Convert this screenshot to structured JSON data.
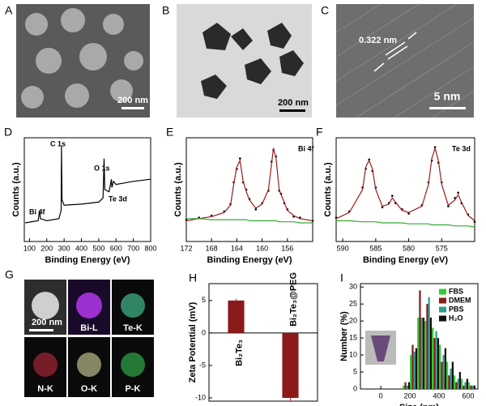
{
  "figure": {
    "images": [
      {
        "label": "A",
        "texts": [
          "200 nm"
        ]
      },
      {
        "label": "B",
        "texts": [
          "200 nm"
        ]
      },
      {
        "label": "C",
        "texts": [
          "0.322 nm",
          "5 nm"
        ]
      },
      {
        "label": "G",
        "texts": [
          "200 nm",
          "Bi-L",
          "Te-K",
          "N-K",
          "O-K",
          "P-K"
        ]
      }
    ]
  },
  "chart_data": [
    {
      "type": "line",
      "label": "D",
      "xlabel": "Binding Energy (eV)",
      "ylabel": "Counts (a.u.)",
      "annotations": [
        "Bi 4f",
        "C 1s",
        "O 1s",
        "Te 3d"
      ],
      "xlim": [
        70,
        800
      ],
      "xticks": [
        100,
        200,
        300,
        400,
        500,
        600,
        700,
        800
      ],
      "ylim": [
        0,
        100
      ],
      "x": [
        75,
        150,
        158,
        163,
        200,
        270,
        283,
        285,
        288,
        300,
        400,
        500,
        525,
        531,
        535,
        560,
        573,
        576,
        585,
        600,
        700,
        800
      ],
      "series": [
        {
          "color": "#000000",
          "values": [
            18,
            20,
            30,
            22,
            20,
            22,
            30,
            92,
            40,
            35,
            36,
            38,
            42,
            80,
            50,
            48,
            60,
            52,
            58,
            55,
            58,
            60
          ]
        }
      ]
    },
    {
      "type": "line",
      "label": "E",
      "xlabel": "Binding Energy (eV)",
      "ylabel": "Counts (a.u.)",
      "annotations": [
        "Bi 4f"
      ],
      "xlim": [
        172,
        152
      ],
      "xticks": [
        172,
        168,
        164,
        160,
        156
      ],
      "ylim": [
        0,
        100
      ],
      "x": [
        172,
        170,
        168,
        166,
        165,
        164.5,
        164,
        163.5,
        163,
        162.5,
        162,
        161,
        160,
        159,
        158.5,
        158.2,
        157.8,
        157.3,
        157,
        156.5,
        156,
        155,
        154,
        152
      ],
      "series": [
        {
          "color": "#000000",
          "style": "dots",
          "values": [
            21,
            23,
            25,
            29,
            36,
            57,
            70,
            80,
            57,
            50,
            41,
            31,
            37,
            49,
            77,
            88,
            82,
            49,
            46,
            37,
            31,
            24,
            23,
            20
          ]
        },
        {
          "color": "#9b1c1c",
          "values": [
            20,
            22,
            24,
            28,
            35,
            55,
            72,
            78,
            58,
            48,
            40,
            32,
            36,
            50,
            75,
            90,
            80,
            50,
            45,
            38,
            30,
            25,
            22,
            20
          ]
        },
        {
          "color": "#33aa33",
          "values": [
            22,
            22,
            21,
            21,
            21,
            21,
            21,
            21,
            21,
            21,
            20,
            20,
            20,
            20,
            20,
            20,
            20,
            19,
            19,
            19,
            19,
            19,
            18,
            18
          ]
        }
      ]
    },
    {
      "type": "line",
      "label": "F",
      "xlabel": "Binding Energy (eV)",
      "ylabel": "Counts (a.u.)",
      "annotations": [
        "Te 3d"
      ],
      "xlim": [
        591,
        570
      ],
      "xticks": [
        590,
        585,
        580,
        575
      ],
      "ylim": [
        0,
        100
      ],
      "x": [
        591,
        589,
        587,
        586.5,
        586,
        585.5,
        585,
        584,
        583,
        582.5,
        582,
        581,
        580,
        578,
        577,
        576.5,
        576,
        575.5,
        575,
        574,
        573,
        572.5,
        572,
        571,
        570
      ],
      "series": [
        {
          "color": "#000000",
          "style": "dots",
          "values": [
            23,
            29,
            52,
            70,
            79,
            68,
            52,
            33,
            37,
            44,
            37,
            31,
            27,
            35,
            57,
            78,
            91,
            76,
            57,
            34,
            42,
            47,
            37,
            26,
            19
          ]
        },
        {
          "color": "#9b1c1c",
          "values": [
            22,
            28,
            50,
            72,
            78,
            70,
            50,
            34,
            36,
            42,
            38,
            30,
            28,
            34,
            55,
            80,
            90,
            78,
            55,
            35,
            40,
            45,
            38,
            25,
            20
          ]
        },
        {
          "color": "#33aa33",
          "values": [
            20,
            20,
            19,
            19,
            19,
            19,
            19,
            18,
            18,
            18,
            18,
            18,
            17,
            17,
            17,
            16,
            16,
            16,
            16,
            16,
            15,
            15,
            15,
            15,
            14
          ]
        }
      ]
    },
    {
      "type": "bar",
      "label": "H",
      "ylabel": "Zeta Potential (mV)",
      "categories": [
        "Bi₂Te₃",
        "Bi₂Te₃@PEG"
      ],
      "values": [
        5,
        -10
      ],
      "errors": [
        0.3,
        0.5
      ],
      "color": "#8b1a1a",
      "ylim": [
        -10.5,
        7.6
      ],
      "yticks": [
        -10,
        -5,
        0,
        5
      ]
    },
    {
      "type": "histogram",
      "label": "I",
      "xlabel": "Size (nm)",
      "ylabel": "Number (%)",
      "xlim": [
        -140,
        667
      ],
      "xticks": [
        0,
        200,
        400,
        600
      ],
      "ylim": [
        0,
        31
      ],
      "yticks": [
        0,
        5,
        10,
        15,
        20,
        25,
        30
      ],
      "bins": [
        150,
        200,
        250,
        300,
        350,
        400,
        450,
        500,
        550,
        600,
        650
      ],
      "legend": "upper right",
      "series": [
        {
          "name": "FBS",
          "color": "#33cc33",
          "values": [
            1,
            10,
            21,
            20,
            18,
            13,
            8,
            4,
            3,
            2
          ]
        },
        {
          "name": "DMEM",
          "color": "#8b1a1a",
          "values": [
            2,
            13,
            29,
            25,
            15,
            8,
            4,
            2,
            1,
            1
          ]
        },
        {
          "name": "PBS",
          "color": "#2a9d8f",
          "values": [
            1,
            11,
            21,
            27,
            17,
            10,
            6,
            3,
            2,
            1
          ]
        },
        {
          "name": "H₂O",
          "color": "#111111",
          "values": [
            2,
            12,
            21,
            21,
            15,
            12,
            8,
            5,
            3,
            1
          ]
        }
      ]
    }
  ]
}
